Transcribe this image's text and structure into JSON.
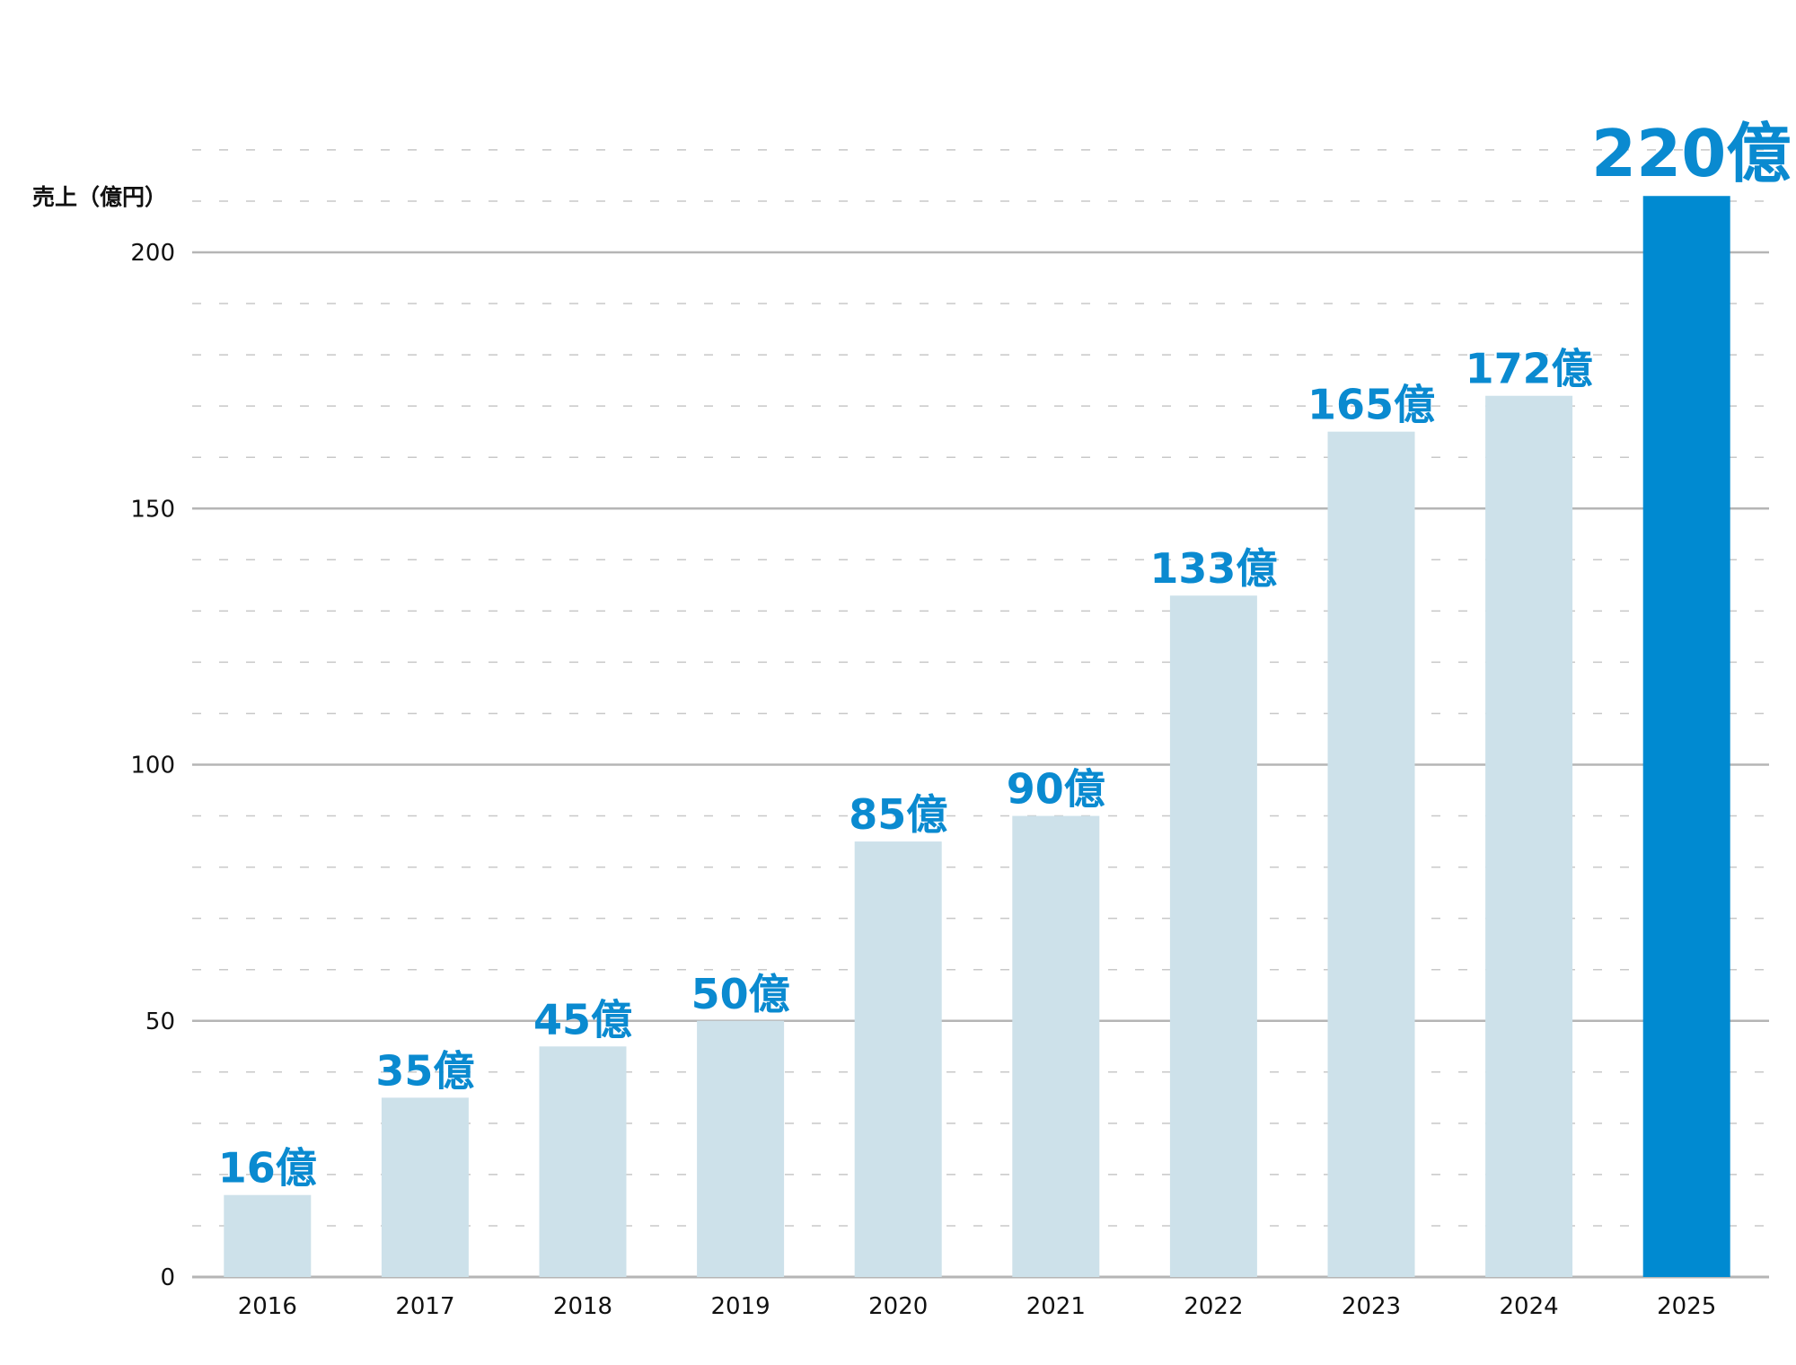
{
  "chart_data": {
    "type": "bar",
    "title": "",
    "ylabel": "売上（億円）",
    "xlabel": "",
    "categories": [
      "2016",
      "2017",
      "2018",
      "2019",
      "2020",
      "2021",
      "2022",
      "2023",
      "2024",
      "2025"
    ],
    "values": [
      16,
      35,
      45,
      50,
      85,
      90,
      133,
      165,
      172,
      220
    ],
    "data_labels": [
      "16億",
      "35億",
      "45億",
      "50億",
      "85億",
      "90億",
      "133億",
      "165億",
      "172億",
      "220億"
    ],
    "ylim": [
      0,
      220
    ],
    "yticks": [
      0,
      50,
      100,
      150,
      200
    ],
    "minor_grid_step": 10,
    "bar_display_cap": 211,
    "grid": true,
    "colors": {
      "bar": "#cde1ea",
      "highlight": "#008ad1",
      "label": "#0a8ad0",
      "grid_major": "#b5b5b5",
      "grid_minor": "#c8c8c8"
    },
    "highlight_index": 9
  }
}
